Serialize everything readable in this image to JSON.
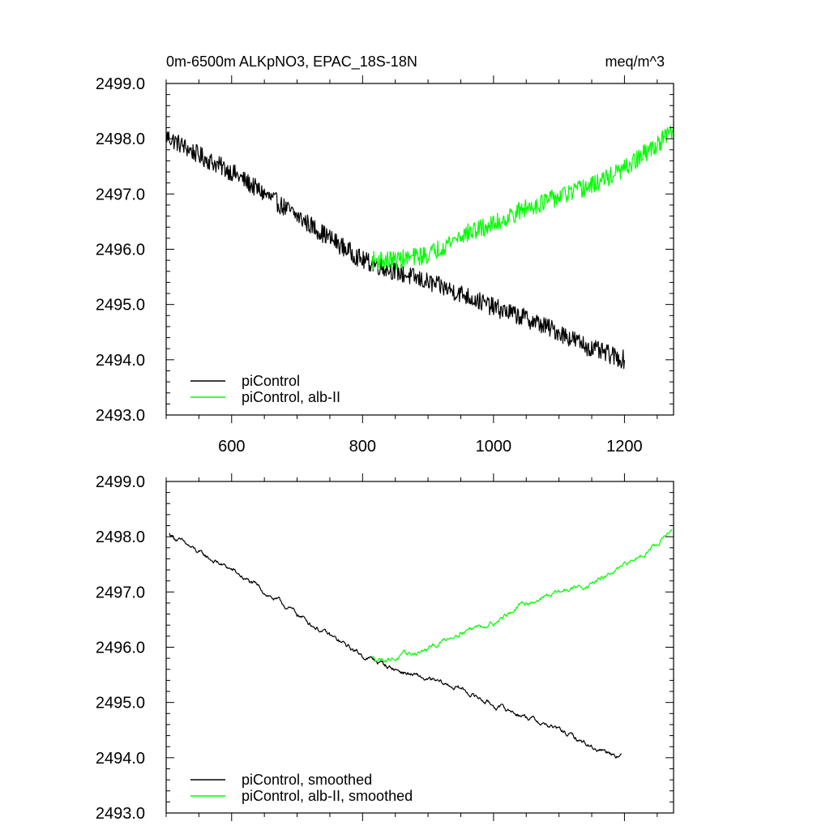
{
  "chart_data": [
    {
      "type": "line",
      "title": "0m-6500m ALKpNO3, EPAC_18S-18N",
      "units": "meq/m^3",
      "xlabel": "",
      "ylabel": "",
      "xlim": [
        500,
        1275
      ],
      "ylim": [
        2493.0,
        2499.0
      ],
      "xticks": [
        600,
        800,
        1000,
        1200
      ],
      "xtick_labels": [
        "600",
        "800",
        "1000",
        "1200"
      ],
      "yticks": [
        2493.0,
        2494.0,
        2495.0,
        2496.0,
        2497.0,
        2498.0,
        2499.0
      ],
      "ytick_labels": [
        "2493.0",
        "2494.0",
        "2495.0",
        "2496.0",
        "2497.0",
        "2498.0",
        "2499.0"
      ],
      "legend_position": "bottom-left",
      "series": [
        {
          "name": "piControl",
          "color": "#000000",
          "noise": 0.17,
          "x": [
            500,
            550,
            600,
            650,
            700,
            750,
            800,
            850,
            900,
            950,
            1000,
            1050,
            1100,
            1150,
            1200
          ],
          "values": [
            2498.05,
            2497.7,
            2497.4,
            2497.0,
            2496.6,
            2496.2,
            2495.8,
            2495.6,
            2495.4,
            2495.2,
            2494.95,
            2494.75,
            2494.5,
            2494.2,
            2494.0
          ]
        },
        {
          "name": "piControl, alb-II",
          "color": "#00ff00",
          "noise": 0.17,
          "x": [
            815,
            850,
            900,
            950,
            1000,
            1050,
            1100,
            1150,
            1200,
            1250,
            1275
          ],
          "values": [
            2495.8,
            2495.8,
            2495.9,
            2496.25,
            2496.45,
            2496.75,
            2496.95,
            2497.15,
            2497.45,
            2497.9,
            2498.15
          ]
        }
      ]
    },
    {
      "type": "line",
      "title": "",
      "xlabel": "",
      "ylabel": "",
      "xlim": [
        500,
        1275
      ],
      "ylim": [
        2493.0,
        2499.0
      ],
      "xticks": [
        600,
        800,
        1000,
        1200
      ],
      "xtick_labels": [],
      "yticks": [
        2493.0,
        2494.0,
        2495.0,
        2496.0,
        2497.0,
        2498.0,
        2499.0
      ],
      "ytick_labels": [
        "2493.0",
        "2494.0",
        "2495.0",
        "2496.0",
        "2497.0",
        "2498.0",
        "2499.0"
      ],
      "legend_position": "bottom-left",
      "series": [
        {
          "name": "piControl, smoothed",
          "color": "#000000",
          "noise": 0.05,
          "x": [
            505,
            550,
            600,
            650,
            700,
            750,
            800,
            850,
            900,
            950,
            1000,
            1050,
            1100,
            1150,
            1195
          ],
          "values": [
            2498.05,
            2497.7,
            2497.4,
            2497.0,
            2496.6,
            2496.2,
            2495.85,
            2495.6,
            2495.4,
            2495.25,
            2494.95,
            2494.75,
            2494.5,
            2494.2,
            2494.05
          ]
        },
        {
          "name": "piControl, alb-II, smoothed",
          "color": "#00ff00",
          "noise": 0.05,
          "x": [
            815,
            850,
            900,
            950,
            1000,
            1050,
            1100,
            1150,
            1200,
            1250,
            1272
          ],
          "values": [
            2495.8,
            2495.8,
            2495.95,
            2496.3,
            2496.45,
            2496.8,
            2497.0,
            2497.15,
            2497.45,
            2497.9,
            2498.1
          ]
        }
      ]
    }
  ]
}
